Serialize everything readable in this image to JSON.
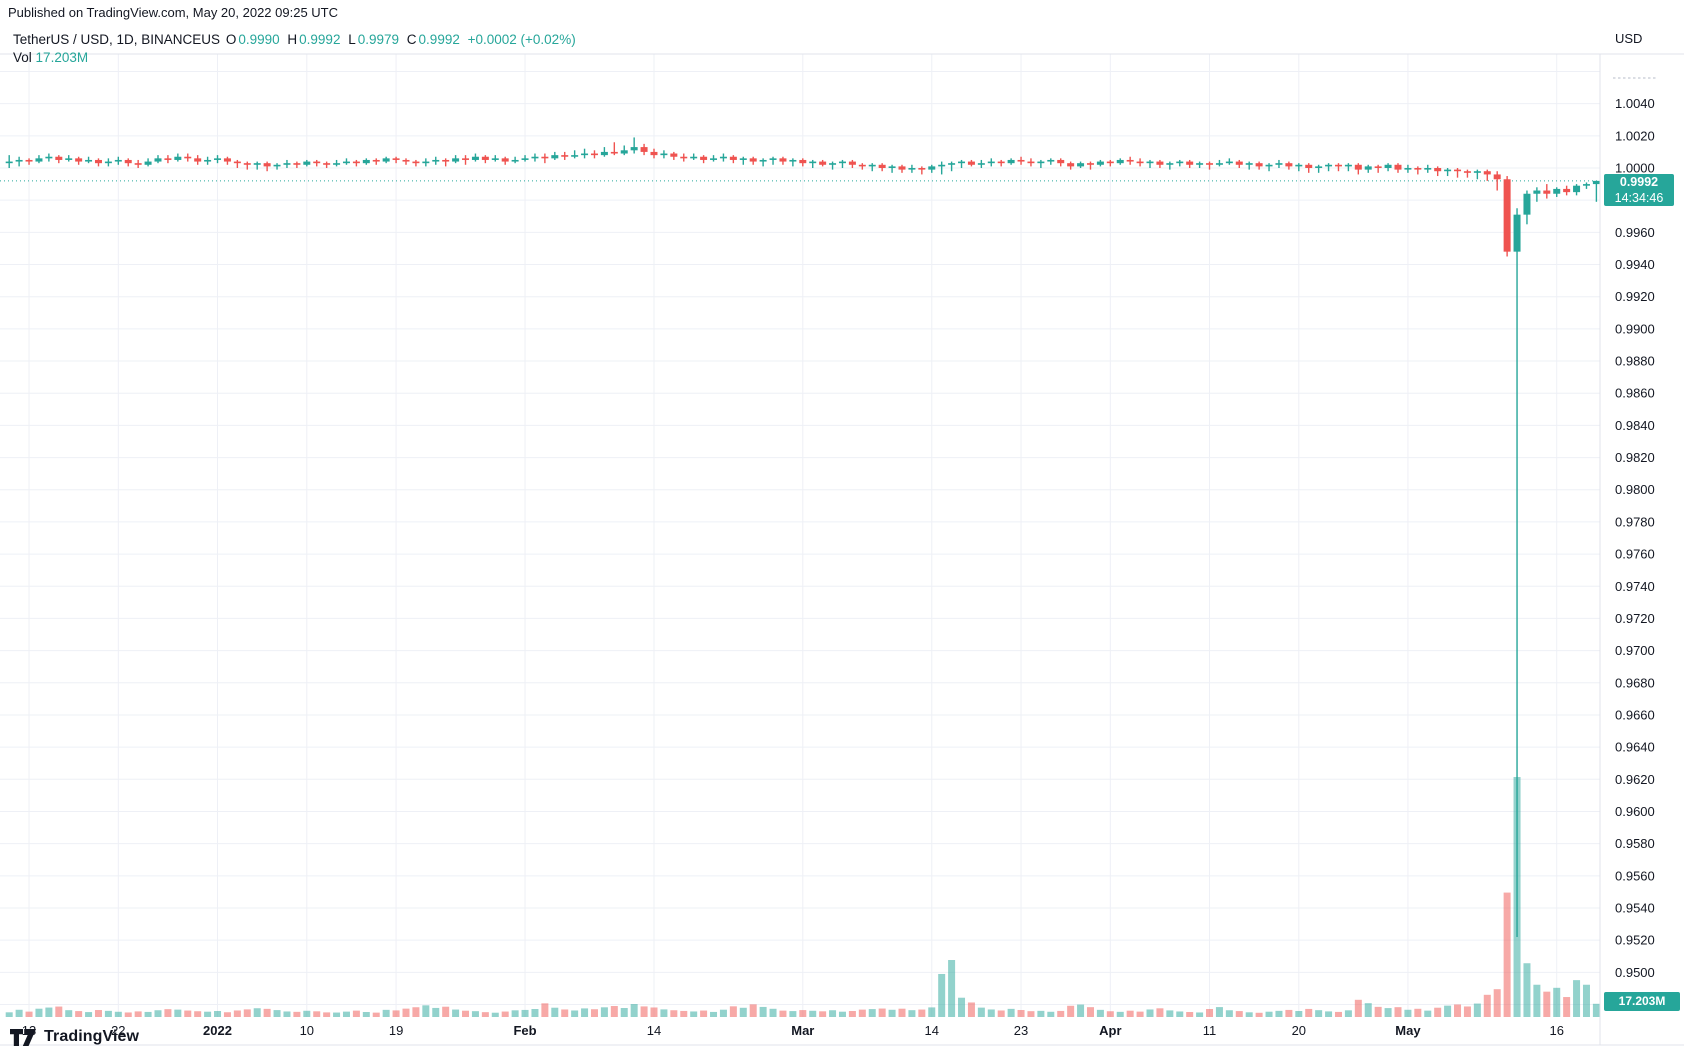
{
  "published_line": "Published on TradingView.com, May 20, 2022 09:25 UTC",
  "legend": {
    "symbol": "TetherUS / USD, 1D, BINANCEUS",
    "ohlc": [
      {
        "label": "O",
        "value": "0.9990"
      },
      {
        "label": "H",
        "value": "0.9992"
      },
      {
        "label": "L",
        "value": "0.9979"
      },
      {
        "label": "C",
        "value": "0.9992"
      }
    ],
    "change": "+0.0002 (+0.02%)",
    "vol_label": "Vol",
    "vol_value": "17.203M"
  },
  "price_axis": {
    "unit": "USD",
    "ticks": [
      "1.0040",
      "1.0020",
      "1.0000",
      "0.9960",
      "0.9940",
      "0.9920",
      "0.9900",
      "0.9880",
      "0.9860",
      "0.9840",
      "0.9820",
      "0.9800",
      "0.9780",
      "0.9760",
      "0.9740",
      "0.9720",
      "0.9700",
      "0.9680",
      "0.9660",
      "0.9640",
      "0.9620",
      "0.9600",
      "0.9580",
      "0.9560",
      "0.9540",
      "0.9520",
      "0.9500"
    ],
    "tag": {
      "price": "0.9992",
      "time": "14:34:46"
    }
  },
  "time_axis": {
    "labels": [
      {
        "text": "13",
        "i": 2,
        "bold": false
      },
      {
        "text": "22",
        "i": 11,
        "bold": false
      },
      {
        "text": "2022",
        "i": 21,
        "bold": true
      },
      {
        "text": "10",
        "i": 30,
        "bold": false
      },
      {
        "text": "19",
        "i": 39,
        "bold": false
      },
      {
        "text": "Feb",
        "i": 52,
        "bold": true
      },
      {
        "text": "14",
        "i": 65,
        "bold": false
      },
      {
        "text": "Mar",
        "i": 80,
        "bold": true
      },
      {
        "text": "14",
        "i": 93,
        "bold": false
      },
      {
        "text": "23",
        "i": 102,
        "bold": false
      },
      {
        "text": "Apr",
        "i": 111,
        "bold": true
      },
      {
        "text": "11",
        "i": 121,
        "bold": false
      },
      {
        "text": "20",
        "i": 130,
        "bold": false
      },
      {
        "text": "May",
        "i": 141,
        "bold": true
      },
      {
        "text": "16",
        "i": 156,
        "bold": false
      }
    ]
  },
  "volume_tag": "17.203M",
  "footer": {
    "logo_text": "TradingView"
  },
  "colors": {
    "up": "#26a69a",
    "down": "#ef5350",
    "vol_up": "rgba(38,166,154,0.5)",
    "vol_down": "rgba(239,83,80,0.5)",
    "accent_text": "#26a69a",
    "tag_bg": "#26a69a",
    "grid": "#eef0f6",
    "border": "#e0e3eb",
    "text": "#131722"
  },
  "chart_data": {
    "type": "candlestick+volume",
    "title": "TetherUS / USD, 1D, BINANCEUS",
    "symbol": "USDT/USD",
    "interval": "1D",
    "exchange": "BINANCEUS",
    "currency": "USD",
    "start_date": "2021-12-11",
    "end_date": "2022-05-20",
    "last_close": 0.9992,
    "last_time": "14:34:46",
    "price_axis_range": [
      0.948,
      1.007
    ],
    "grid_step": 0.002,
    "volume_unit": "millions",
    "columns": [
      "open",
      "high",
      "low",
      "close",
      "volume_m"
    ],
    "candles": [
      [
        1.0003,
        1.0008,
        1.0,
        1.0004,
        6.1
      ],
      [
        1.0004,
        1.0007,
        1.0001,
        1.0005,
        9.4
      ],
      [
        1.0005,
        1.0006,
        1.0002,
        1.0004,
        7.0
      ],
      [
        1.0004,
        1.0008,
        1.0003,
        1.0006,
        10.8
      ],
      [
        1.0006,
        1.0009,
        1.0004,
        1.0007,
        12.3
      ],
      [
        1.0007,
        1.0008,
        1.0003,
        1.0005,
        13.6
      ],
      [
        1.0005,
        1.0008,
        1.0004,
        1.0006,
        8.9
      ],
      [
        1.0006,
        1.0007,
        1.0002,
        1.0004,
        7.7
      ],
      [
        1.0004,
        1.0007,
        1.0003,
        1.0005,
        6.4
      ],
      [
        1.0005,
        1.0006,
        1.0001,
        1.0003,
        9.1
      ],
      [
        1.0003,
        1.0006,
        1.0001,
        1.0004,
        8.0
      ],
      [
        1.0004,
        1.0007,
        1.0002,
        1.0005,
        6.8
      ],
      [
        1.0005,
        1.0006,
        1.0001,
        1.0003,
        5.9
      ],
      [
        1.0003,
        1.0005,
        1.0,
        1.0002,
        7.3
      ],
      [
        1.0002,
        1.0006,
        1.0001,
        1.0004,
        6.6
      ],
      [
        1.0004,
        1.0008,
        1.0003,
        1.0006,
        8.8
      ],
      [
        1.0006,
        1.0008,
        1.0003,
        1.0005,
        10.2
      ],
      [
        1.0005,
        1.0009,
        1.0004,
        1.0007,
        9.6
      ],
      [
        1.0007,
        1.0009,
        1.0004,
        1.0006,
        8.4
      ],
      [
        1.0006,
        1.0008,
        1.0002,
        1.0004,
        7.5
      ],
      [
        1.0004,
        1.0007,
        1.0002,
        1.0005,
        6.9
      ],
      [
        1.0005,
        1.0008,
        1.0003,
        1.0006,
        7.8
      ],
      [
        1.0006,
        1.0007,
        1.0002,
        1.0004,
        6.2
      ],
      [
        1.0004,
        1.0005,
        1.0,
        1.0003,
        8.5
      ],
      [
        1.0003,
        1.0004,
        0.9999,
        1.0002,
        9.9
      ],
      [
        1.0002,
        1.0004,
        0.9999,
        1.0003,
        11.4
      ],
      [
        1.0003,
        1.0004,
        0.9998,
        1.0001,
        10.6
      ],
      [
        1.0001,
        1.0003,
        0.9999,
        1.0002,
        9.0
      ],
      [
        1.0002,
        1.0005,
        1.0,
        1.0003,
        7.2
      ],
      [
        1.0003,
        1.0004,
        1.0,
        1.0002,
        6.7
      ],
      [
        1.0002,
        1.0005,
        1.0001,
        1.0004,
        8.1
      ],
      [
        1.0004,
        1.0005,
        1.0001,
        1.0003,
        7.4
      ],
      [
        1.0003,
        1.0004,
        1.0,
        1.0002,
        6.0
      ],
      [
        1.0002,
        1.0005,
        1.0001,
        1.0003,
        5.8
      ],
      [
        1.0003,
        1.0006,
        1.0002,
        1.0004,
        7.0
      ],
      [
        1.0004,
        1.0005,
        1.0001,
        1.0003,
        8.3
      ],
      [
        1.0003,
        1.0006,
        1.0002,
        1.0005,
        6.5
      ],
      [
        1.0005,
        1.0006,
        1.0002,
        1.0004,
        5.7
      ],
      [
        1.0004,
        1.0007,
        1.0003,
        1.0006,
        9.3
      ],
      [
        1.0006,
        1.0007,
        1.0003,
        1.0005,
        8.6
      ],
      [
        1.0005,
        1.0006,
        1.0002,
        1.0004,
        10.9
      ],
      [
        1.0004,
        1.0005,
        1.0001,
        1.0003,
        12.7
      ],
      [
        1.0003,
        1.0006,
        1.0001,
        1.0004,
        15.2
      ],
      [
        1.0004,
        1.0007,
        1.0002,
        1.0005,
        11.8
      ],
      [
        1.0005,
        1.0006,
        1.0001,
        1.0004,
        13.4
      ],
      [
        1.0004,
        1.0008,
        1.0003,
        1.0006,
        9.7
      ],
      [
        1.0006,
        1.0008,
        1.0002,
        1.0005,
        8.2
      ],
      [
        1.0005,
        1.0009,
        1.0004,
        1.0007,
        7.6
      ],
      [
        1.0007,
        1.0008,
        1.0003,
        1.0005,
        6.3
      ],
      [
        1.0005,
        1.0008,
        1.0004,
        1.0006,
        5.6
      ],
      [
        1.0006,
        1.0007,
        1.0002,
        1.0004,
        7.1
      ],
      [
        1.0004,
        1.0007,
        1.0003,
        1.0005,
        8.7
      ],
      [
        1.0005,
        1.0008,
        1.0004,
        1.0006,
        9.2
      ],
      [
        1.0006,
        1.0009,
        1.0004,
        1.0007,
        10.4
      ],
      [
        1.0007,
        1.0009,
        1.0003,
        1.0006,
        17.8
      ],
      [
        1.0006,
        1.001,
        1.0005,
        1.0008,
        12.1
      ],
      [
        1.0008,
        1.001,
        1.0005,
        1.0007,
        9.8
      ],
      [
        1.0007,
        1.0011,
        1.0006,
        1.0008,
        8.5
      ],
      [
        1.0008,
        1.0012,
        1.0006,
        1.0009,
        11.2
      ],
      [
        1.0009,
        1.0011,
        1.0006,
        1.0008,
        10.1
      ],
      [
        1.0008,
        1.0013,
        1.0007,
        1.001,
        12.6
      ],
      [
        1.001,
        1.0016,
        1.0008,
        1.0009,
        14.3
      ],
      [
        1.0009,
        1.0014,
        1.0008,
        1.0011,
        11.7
      ],
      [
        1.0011,
        1.0019,
        1.0009,
        1.0013,
        16.9
      ],
      [
        1.0013,
        1.0015,
        1.0008,
        1.001,
        13.8
      ],
      [
        1.001,
        1.0012,
        1.0006,
        1.0008,
        12.4
      ],
      [
        1.0008,
        1.0011,
        1.0006,
        1.0009,
        9.9
      ],
      [
        1.0009,
        1.001,
        1.0005,
        1.0007,
        8.8
      ],
      [
        1.0007,
        1.0009,
        1.0004,
        1.0006,
        7.9
      ],
      [
        1.0006,
        1.0009,
        1.0005,
        1.0007,
        7.2
      ],
      [
        1.0007,
        1.0008,
        1.0003,
        1.0005,
        8.4
      ],
      [
        1.0005,
        1.0008,
        1.0004,
        1.0006,
        6.6
      ],
      [
        1.0006,
        1.0009,
        1.0004,
        1.0007,
        9.5
      ],
      [
        1.0007,
        1.0008,
        1.0003,
        1.0005,
        13.9
      ],
      [
        1.0005,
        1.0007,
        1.0002,
        1.0006,
        12.0
      ],
      [
        1.0006,
        1.0007,
        1.0002,
        1.0004,
        16.5
      ],
      [
        1.0004,
        1.0006,
        1.0001,
        1.0005,
        13.1
      ],
      [
        1.0005,
        1.0007,
        1.0002,
        1.0006,
        10.7
      ],
      [
        1.0006,
        1.0007,
        1.0002,
        1.0004,
        8.3
      ],
      [
        1.0004,
        1.0006,
        1.0001,
        1.0005,
        7.7
      ],
      [
        1.0005,
        1.0006,
        1.0001,
        1.0003,
        9.0
      ],
      [
        1.0003,
        1.0005,
        1.0,
        1.0004,
        8.1
      ],
      [
        1.0004,
        1.0005,
        1.0001,
        1.0002,
        7.4
      ],
      [
        1.0002,
        1.0004,
        0.9999,
        1.0003,
        8.8
      ],
      [
        1.0003,
        1.0005,
        1.0,
        1.0004,
        6.9
      ],
      [
        1.0004,
        1.0005,
        1.0,
        1.0002,
        7.8
      ],
      [
        1.0002,
        1.0003,
        0.9999,
        1.0001,
        9.6
      ],
      [
        1.0001,
        1.0003,
        0.9998,
        1.0002,
        10.3
      ],
      [
        1.0002,
        1.0003,
        0.9998,
        1.0,
        11.0
      ],
      [
        1.0,
        1.0002,
        0.9997,
        1.0001,
        9.4
      ],
      [
        1.0001,
        1.0002,
        0.9997,
        0.9999,
        10.8
      ],
      [
        0.9999,
        1.0002,
        0.9997,
        1.0,
        8.9
      ],
      [
        1.0,
        1.0001,
        0.9996,
        0.9999,
        9.7
      ],
      [
        0.9999,
        1.0002,
        0.9997,
        1.0001,
        12.5
      ],
      [
        1.0001,
        1.0004,
        0.9996,
        1.0002,
        56.0
      ],
      [
        1.0002,
        1.0004,
        0.9998,
        1.0003,
        74.2
      ],
      [
        1.0003,
        1.0005,
        1.0,
        1.0004,
        25.1
      ],
      [
        1.0004,
        1.0005,
        1.0001,
        1.0002,
        18.9
      ],
      [
        1.0002,
        1.0005,
        1.0,
        1.0003,
        12.2
      ],
      [
        1.0003,
        1.0006,
        1.0001,
        1.0004,
        9.8
      ],
      [
        1.0004,
        1.0005,
        1.0001,
        1.0003,
        8.5
      ],
      [
        1.0003,
        1.0006,
        1.0002,
        1.0005,
        10.6
      ],
      [
        1.0005,
        1.0007,
        1.0002,
        1.0004,
        9.1
      ],
      [
        1.0004,
        1.0006,
        1.0001,
        1.0003,
        7.6
      ],
      [
        1.0003,
        1.0005,
        1.0,
        1.0004,
        8.0
      ],
      [
        1.0004,
        1.0006,
        1.0002,
        1.0005,
        6.8
      ],
      [
        1.0005,
        1.0006,
        1.0001,
        1.0003,
        7.9
      ],
      [
        1.0003,
        1.0004,
        0.9999,
        1.0001,
        14.6
      ],
      [
        1.0001,
        1.0004,
        1.0,
        1.0003,
        16.2
      ],
      [
        1.0003,
        1.0004,
        0.9999,
        1.0002,
        12.8
      ],
      [
        1.0002,
        1.0005,
        1.0001,
        1.0004,
        9.3
      ],
      [
        1.0004,
        1.0005,
        1.0001,
        1.0003,
        7.5
      ],
      [
        1.0003,
        1.0006,
        1.0002,
        1.0005,
        6.7
      ],
      [
        1.0005,
        1.0007,
        1.0002,
        1.0004,
        8.2
      ],
      [
        1.0004,
        1.0006,
        1.0001,
        1.0003,
        7.0
      ],
      [
        1.0003,
        1.0005,
        1.0,
        1.0004,
        9.8
      ],
      [
        1.0004,
        1.0005,
        1.0,
        1.0002,
        11.3
      ],
      [
        1.0002,
        1.0004,
        0.9999,
        1.0003,
        8.6
      ],
      [
        1.0003,
        1.0005,
        1.0001,
        1.0004,
        7.2
      ],
      [
        1.0004,
        1.0005,
        1.0,
        1.0002,
        6.5
      ],
      [
        1.0002,
        1.0004,
        1.0,
        1.0003,
        5.9
      ],
      [
        1.0003,
        1.0004,
        0.9999,
        1.0002,
        10.4
      ],
      [
        1.0002,
        1.0005,
        1.0001,
        1.0003,
        12.9
      ],
      [
        1.0003,
        1.0006,
        1.0002,
        1.0004,
        8.8
      ],
      [
        1.0004,
        1.0005,
        1.0,
        1.0002,
        7.7
      ],
      [
        1.0002,
        1.0004,
        0.9999,
        1.0003,
        6.1
      ],
      [
        1.0003,
        1.0004,
        0.9999,
        1.0001,
        5.5
      ],
      [
        1.0001,
        1.0003,
        0.9998,
        1.0002,
        6.9
      ],
      [
        1.0002,
        1.0005,
        1.0,
        1.0003,
        8.0
      ],
      [
        1.0003,
        1.0004,
        0.9999,
        1.0001,
        9.2
      ],
      [
        1.0001,
        1.0003,
        0.9998,
        1.0002,
        7.8
      ],
      [
        1.0002,
        1.0003,
        0.9997,
        1.0,
        10.5
      ],
      [
        1.0,
        1.0002,
        0.9997,
        1.0001,
        8.9
      ],
      [
        1.0001,
        1.0003,
        0.9998,
        1.0002,
        7.3
      ],
      [
        1.0002,
        1.0003,
        0.9998,
        1.0001,
        6.6
      ],
      [
        1.0001,
        1.0003,
        0.9998,
        1.0002,
        8.7
      ],
      [
        1.0002,
        1.0003,
        0.9996,
        0.9999,
        22.4
      ],
      [
        0.9999,
        1.0002,
        0.9997,
        1.0001,
        18.0
      ],
      [
        1.0001,
        1.0002,
        0.9997,
        1.0,
        13.2
      ],
      [
        1.0,
        1.0003,
        0.9998,
        1.0002,
        11.6
      ],
      [
        1.0002,
        1.0003,
        0.9997,
        0.9999,
        12.8
      ],
      [
        0.9999,
        1.0002,
        0.9997,
        1.0,
        9.4
      ],
      [
        1.0,
        1.0001,
        0.9996,
        0.9999,
        10.7
      ],
      [
        0.9999,
        1.0002,
        0.9997,
        1.0,
        8.3
      ],
      [
        1.0,
        1.0001,
        0.9995,
        0.9998,
        12.1
      ],
      [
        0.9998,
        1.0,
        0.9995,
        0.9999,
        14.8
      ],
      [
        0.9999,
        1.0,
        0.9994,
        0.9998,
        16.3
      ],
      [
        0.9998,
        0.9999,
        0.9994,
        0.9997,
        13.7
      ],
      [
        0.9997,
        0.9999,
        0.9993,
        0.9998,
        17.5
      ],
      [
        0.9998,
        0.9999,
        0.9992,
        0.9996,
        28.9
      ],
      [
        0.9996,
        0.9998,
        0.9986,
        0.9993,
        36.2
      ],
      [
        0.9993,
        0.9995,
        0.9945,
        0.9948,
        162.0
      ],
      [
        0.9948,
        0.9975,
        0.9522,
        0.9971,
        312.5
      ],
      [
        0.9971,
        0.9986,
        0.9965,
        0.9984,
        70.0
      ],
      [
        0.9984,
        0.9988,
        0.9979,
        0.9986,
        42.0
      ],
      [
        0.9986,
        0.999,
        0.9981,
        0.9984,
        33.0
      ],
      [
        0.9984,
        0.9988,
        0.9982,
        0.9987,
        38.0
      ],
      [
        0.9987,
        0.9989,
        0.9983,
        0.9985,
        26.0
      ],
      [
        0.9985,
        0.999,
        0.9983,
        0.9989,
        48.0
      ],
      [
        0.9989,
        0.9991,
        0.9987,
        0.999,
        42.0
      ],
      [
        0.999,
        0.9992,
        0.9979,
        0.9992,
        17.203
      ]
    ]
  }
}
